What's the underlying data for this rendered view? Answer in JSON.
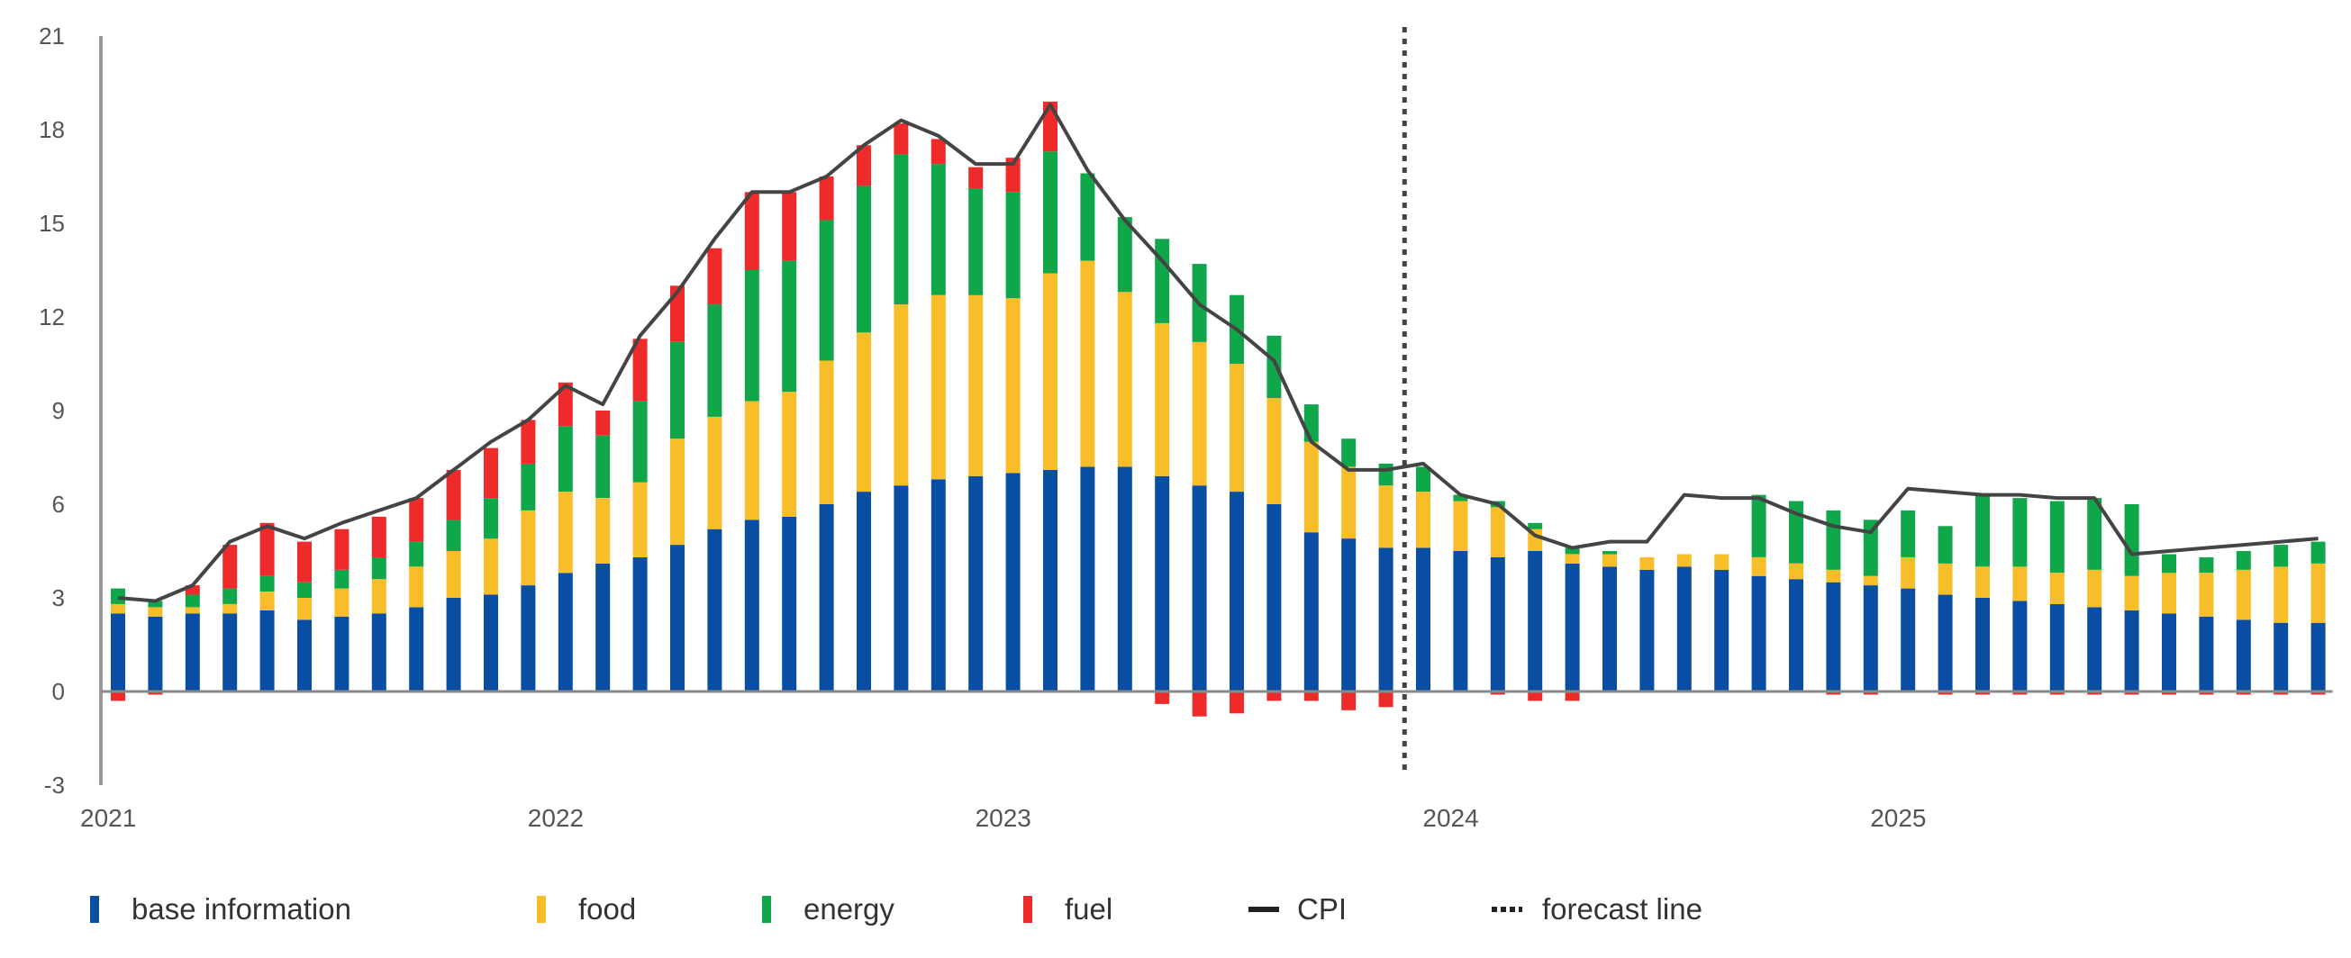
{
  "chart_data": {
    "type": "stacked-bar-line",
    "title": "",
    "xlabel": "",
    "ylabel": "",
    "ylim": [
      -3,
      21
    ],
    "yticks": [
      "21",
      "18",
      "15",
      "12",
      "9",
      "6",
      "3",
      "0",
      "-3"
    ],
    "ytick_values": [
      21,
      18,
      15,
      12,
      9,
      6,
      3,
      0,
      -3
    ],
    "year_labels": [
      {
        "label": "2021",
        "period": 0
      },
      {
        "label": "2022",
        "period": 12
      },
      {
        "label": "2023",
        "period": 24
      },
      {
        "label": "2024",
        "period": 36
      },
      {
        "label": "2025",
        "period": 48
      }
    ],
    "periods": 60,
    "forecast_start_period": 34.5,
    "series": [
      {
        "name": "base information",
        "color": "#0a4ea3",
        "values": [
          2.5,
          2.4,
          2.5,
          2.5,
          2.6,
          2.3,
          2.4,
          2.5,
          2.7,
          3.0,
          3.1,
          3.4,
          3.8,
          4.1,
          4.3,
          4.7,
          5.2,
          5.5,
          5.6,
          6.0,
          6.4,
          6.6,
          6.8,
          6.9,
          7.0,
          7.1,
          7.2,
          7.2,
          6.9,
          6.6,
          6.4,
          6.0,
          5.1,
          4.9,
          4.6,
          4.6,
          4.5,
          4.3,
          4.5,
          4.1,
          4.0,
          3.9,
          4.0,
          3.9,
          3.7,
          3.6,
          3.5,
          3.4,
          3.3,
          3.1,
          3.0,
          2.9,
          2.8,
          2.7,
          2.6,
          2.5,
          2.4,
          2.3,
          2.2,
          2.2
        ]
      },
      {
        "name": "food",
        "color": "#f8be2a",
        "values": [
          0.3,
          0.3,
          0.2,
          0.3,
          0.6,
          0.7,
          0.9,
          1.1,
          1.3,
          1.5,
          1.8,
          2.4,
          2.6,
          2.1,
          2.4,
          3.4,
          3.6,
          3.8,
          4.0,
          4.6,
          5.1,
          5.8,
          5.9,
          5.8,
          5.6,
          6.3,
          6.6,
          5.6,
          4.9,
          4.6,
          4.1,
          3.4,
          2.9,
          2.3,
          2.0,
          1.8,
          1.6,
          1.6,
          0.7,
          0.3,
          0.4,
          0.4,
          0.4,
          0.5,
          0.6,
          0.5,
          0.4,
          0.3,
          1.0,
          1.0,
          1.0,
          1.1,
          1.0,
          1.2,
          1.1,
          1.3,
          1.4,
          1.6,
          1.8,
          1.9
        ]
      },
      {
        "name": "energy",
        "color": "#10a64a",
        "values": [
          0.5,
          0.2,
          0.4,
          0.5,
          0.5,
          0.5,
          0.6,
          0.7,
          0.8,
          1.0,
          1.3,
          1.5,
          2.1,
          2.0,
          2.6,
          3.1,
          3.6,
          4.2,
          4.2,
          4.5,
          4.7,
          4.8,
          4.2,
          3.4,
          3.4,
          3.9,
          2.8,
          2.4,
          2.7,
          2.5,
          2.2,
          2.0,
          1.2,
          0.9,
          0.7,
          0.8,
          0.2,
          0.2,
          0.2,
          0.2,
          0.1,
          0.0,
          0.0,
          0.0,
          2.0,
          2.0,
          1.9,
          1.8,
          1.5,
          1.2,
          2.3,
          2.2,
          2.3,
          2.3,
          2.3,
          0.6,
          0.5,
          0.6,
          0.7,
          0.7
        ]
      },
      {
        "name": "fuel",
        "color": "#ee2a2a",
        "values": [
          -0.3,
          -0.1,
          0.3,
          1.4,
          1.7,
          1.3,
          1.3,
          1.3,
          1.4,
          1.6,
          1.6,
          1.4,
          1.4,
          0.8,
          2.0,
          1.8,
          1.8,
          2.5,
          2.2,
          1.4,
          1.3,
          1.0,
          0.8,
          0.7,
          1.1,
          1.6,
          0.0,
          0.0,
          -0.4,
          -0.8,
          -0.7,
          -0.3,
          -0.3,
          -0.6,
          -0.5,
          0.0,
          0.0,
          -0.1,
          -0.3,
          -0.3,
          0.0,
          0.0,
          0.0,
          0.0,
          0.0,
          0.0,
          -0.1,
          -0.1,
          0.0,
          -0.1,
          -0.1,
          -0.1,
          -0.1,
          -0.1,
          -0.1,
          -0.1,
          -0.1,
          -0.1,
          -0.1,
          -0.1
        ]
      }
    ],
    "cpi": {
      "name": "CPI",
      "color": "#444444",
      "values": [
        3.0,
        2.9,
        3.4,
        4.8,
        5.3,
        4.9,
        5.4,
        5.8,
        6.2,
        7.1,
        8.0,
        8.7,
        9.8,
        9.2,
        11.4,
        12.8,
        14.5,
        16.0,
        16.0,
        16.5,
        17.5,
        18.3,
        17.8,
        16.9,
        16.9,
        18.8,
        16.7,
        15.1,
        13.8,
        12.4,
        11.6,
        10.6,
        8.0,
        7.1,
        7.1,
        7.3,
        6.3,
        6.0,
        5.0,
        4.6,
        4.8,
        4.8,
        6.3,
        6.2,
        6.2,
        5.7,
        5.3,
        5.1,
        6.5,
        6.4,
        6.3,
        6.3,
        6.2,
        6.2,
        4.4,
        4.5,
        4.6,
        4.7,
        4.8,
        4.9
      ]
    }
  },
  "legend": [
    {
      "label": "base information",
      "kind": "bar",
      "color": "#0a4ea3"
    },
    {
      "label": "food",
      "kind": "bar",
      "color": "#f8be2a"
    },
    {
      "label": "energy",
      "kind": "bar",
      "color": "#10a64a"
    },
    {
      "label": "fuel",
      "kind": "bar",
      "color": "#ee2a2a"
    },
    {
      "label": "CPI",
      "kind": "line",
      "color": "#222222"
    },
    {
      "label": "forecast line",
      "kind": "dotted",
      "color": "#222222"
    }
  ]
}
